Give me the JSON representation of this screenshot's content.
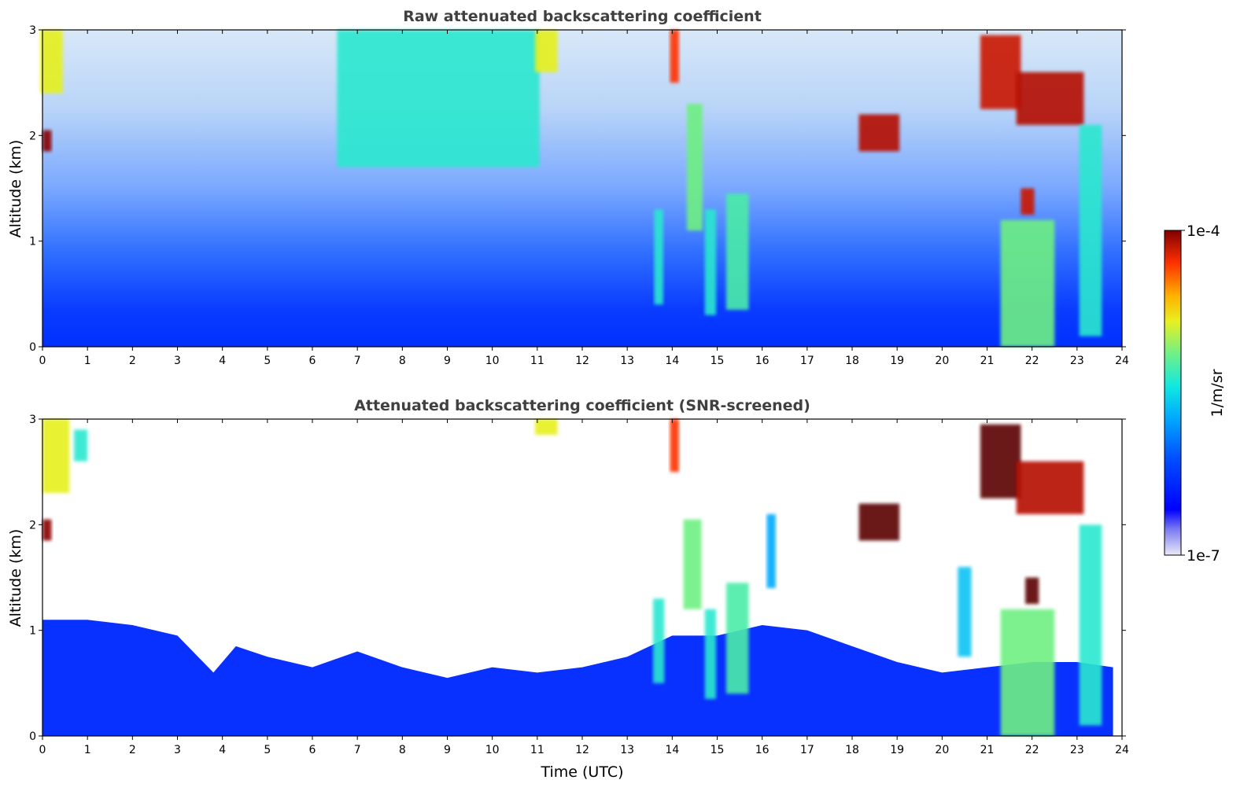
{
  "chart_data": [
    {
      "type": "heatmap",
      "title": "Raw attenuated backscattering coefficient",
      "xlabel": "",
      "ylabel": "Altitude (km)",
      "xlim": [
        0,
        24
      ],
      "ylim": [
        0,
        3
      ],
      "x_ticks": [
        "0",
        "1",
        "2",
        "3",
        "4",
        "5",
        "6",
        "7",
        "8",
        "9",
        "10",
        "11",
        "12",
        "13",
        "14",
        "15",
        "16",
        "17",
        "18",
        "19",
        "20",
        "21",
        "22",
        "23",
        "24"
      ],
      "y_ticks": [
        "0",
        "1",
        "2",
        "3"
      ],
      "grid": false,
      "features": [
        {
          "x": 0.2,
          "x_width": 0.5,
          "y_bottom": 2.4,
          "y_top": 3.0,
          "level": 0.65
        },
        {
          "x": 0.1,
          "x_width": 0.2,
          "y_bottom": 1.85,
          "y_top": 2.05,
          "level": 0.95
        },
        {
          "x": 8.8,
          "x_width": 4.5,
          "y_bottom": 1.7,
          "y_top": 3.0,
          "level": 0.45
        },
        {
          "x": 11.2,
          "x_width": 0.5,
          "y_bottom": 2.6,
          "y_top": 3.0,
          "level": 0.65
        },
        {
          "x": 14.05,
          "x_width": 0.2,
          "y_bottom": 2.5,
          "y_top": 3.0,
          "level": 0.85
        },
        {
          "x": 14.5,
          "x_width": 0.35,
          "y_bottom": 1.1,
          "y_top": 2.3,
          "level": 0.55
        },
        {
          "x": 13.7,
          "x_width": 0.2,
          "y_bottom": 0.4,
          "y_top": 1.3,
          "level": 0.45
        },
        {
          "x": 14.85,
          "x_width": 0.25,
          "y_bottom": 0.3,
          "y_top": 1.3,
          "level": 0.45
        },
        {
          "x": 15.45,
          "x_width": 0.5,
          "y_bottom": 0.35,
          "y_top": 1.45,
          "level": 0.5
        },
        {
          "x": 18.6,
          "x_width": 0.9,
          "y_bottom": 1.85,
          "y_top": 2.2,
          "level": 0.92
        },
        {
          "x": 21.3,
          "x_width": 0.9,
          "y_bottom": 2.25,
          "y_top": 2.95,
          "level": 0.9
        },
        {
          "x": 22.4,
          "x_width": 1.5,
          "y_bottom": 2.1,
          "y_top": 2.6,
          "level": 0.92
        },
        {
          "x": 21.9,
          "x_width": 0.3,
          "y_bottom": 1.25,
          "y_top": 1.5,
          "level": 0.9
        },
        {
          "x": 21.9,
          "x_width": 1.2,
          "y_bottom": 0.0,
          "y_top": 1.2,
          "level": 0.55
        },
        {
          "x": 23.3,
          "x_width": 0.5,
          "y_bottom": 0.1,
          "y_top": 2.1,
          "level": 0.45
        }
      ]
    },
    {
      "type": "heatmap",
      "title": "Attenuated backscattering coefficient (SNR-screened)",
      "xlabel": "Time (UTC)",
      "ylabel": "Altitude (km)",
      "xlim": [
        0,
        24
      ],
      "ylim": [
        0,
        3
      ],
      "x_ticks": [
        "0",
        "1",
        "2",
        "3",
        "4",
        "5",
        "6",
        "7",
        "8",
        "9",
        "10",
        "11",
        "12",
        "13",
        "14",
        "15",
        "16",
        "17",
        "18",
        "19",
        "20",
        "21",
        "22",
        "23",
        "24"
      ],
      "y_ticks": [
        "0",
        "1",
        "2",
        "3"
      ],
      "grid": false,
      "boundary_layer_top_km": [
        [
          0,
          1.1
        ],
        [
          1,
          1.1
        ],
        [
          2,
          1.05
        ],
        [
          3,
          0.95
        ],
        [
          3.8,
          0.6
        ],
        [
          4.3,
          0.85
        ],
        [
          5,
          0.75
        ],
        [
          6,
          0.65
        ],
        [
          7,
          0.8
        ],
        [
          8,
          0.65
        ],
        [
          9,
          0.55
        ],
        [
          10,
          0.65
        ],
        [
          11,
          0.6
        ],
        [
          12,
          0.65
        ],
        [
          13,
          0.75
        ],
        [
          14,
          0.95
        ],
        [
          15,
          0.95
        ],
        [
          16,
          1.05
        ],
        [
          17,
          1.0
        ],
        [
          18,
          0.85
        ],
        [
          19,
          0.7
        ],
        [
          20,
          0.6
        ],
        [
          21,
          0.65
        ],
        [
          22,
          0.7
        ],
        [
          23,
          0.7
        ],
        [
          23.8,
          0.65
        ]
      ],
      "features": [
        {
          "x": 0.3,
          "x_width": 0.6,
          "y_bottom": 2.3,
          "y_top": 3.0,
          "level": 0.65
        },
        {
          "x": 0.85,
          "x_width": 0.3,
          "y_bottom": 2.6,
          "y_top": 2.9,
          "level": 0.45
        },
        {
          "x": 0.1,
          "x_width": 0.2,
          "y_bottom": 1.85,
          "y_top": 2.05,
          "level": 0.95
        },
        {
          "x": 11.2,
          "x_width": 0.5,
          "y_bottom": 2.85,
          "y_top": 3.0,
          "level": 0.65
        },
        {
          "x": 14.05,
          "x_width": 0.2,
          "y_bottom": 2.5,
          "y_top": 3.0,
          "level": 0.85
        },
        {
          "x": 14.45,
          "x_width": 0.4,
          "y_bottom": 1.2,
          "y_top": 2.05,
          "level": 0.55
        },
        {
          "x": 13.7,
          "x_width": 0.25,
          "y_bottom": 0.5,
          "y_top": 1.3,
          "level": 0.45
        },
        {
          "x": 14.85,
          "x_width": 0.25,
          "y_bottom": 0.35,
          "y_top": 1.2,
          "level": 0.45
        },
        {
          "x": 15.45,
          "x_width": 0.5,
          "y_bottom": 0.4,
          "y_top": 1.45,
          "level": 0.5
        },
        {
          "x": 16.2,
          "x_width": 0.2,
          "y_bottom": 1.4,
          "y_top": 2.1,
          "level": 0.3
        },
        {
          "x": 18.6,
          "x_width": 0.9,
          "y_bottom": 1.85,
          "y_top": 2.2,
          "level": 0.97
        },
        {
          "x": 21.3,
          "x_width": 0.9,
          "y_bottom": 2.25,
          "y_top": 2.95,
          "level": 0.97
        },
        {
          "x": 22.4,
          "x_width": 1.5,
          "y_bottom": 2.1,
          "y_top": 2.6,
          "level": 0.92
        },
        {
          "x": 22.0,
          "x_width": 0.3,
          "y_bottom": 1.25,
          "y_top": 1.5,
          "level": 0.97
        },
        {
          "x": 21.9,
          "x_width": 1.2,
          "y_bottom": 0.0,
          "y_top": 1.2,
          "level": 0.55
        },
        {
          "x": 23.3,
          "x_width": 0.5,
          "y_bottom": 0.1,
          "y_top": 2.0,
          "level": 0.45
        },
        {
          "x": 20.5,
          "x_width": 0.3,
          "y_bottom": 0.75,
          "y_top": 1.6,
          "level": 0.35
        }
      ]
    }
  ],
  "colorbar": {
    "label": "1/m/sr",
    "max_label": "1e-4",
    "min_label": "1e-7",
    "colormap": "jet",
    "scale": "log"
  }
}
